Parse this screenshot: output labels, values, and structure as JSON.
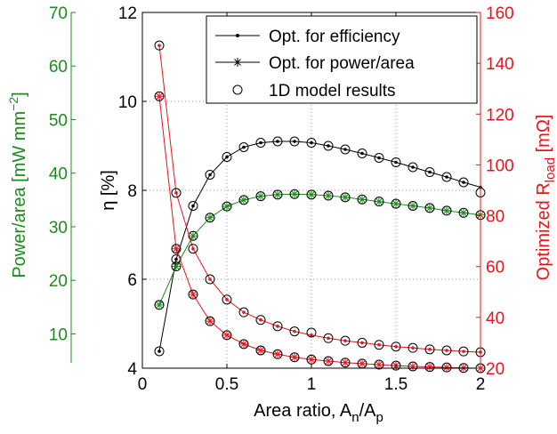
{
  "chart_data": {
    "type": "line",
    "xlabel": {
      "main": "Area ratio, A",
      "sub1": "n",
      "mid": "/A",
      "sub2": "p"
    },
    "xlim": [
      0,
      2
    ],
    "xticks": [
      0,
      0.5,
      1,
      1.5,
      2
    ],
    "xtick_labels": [
      "0",
      "0.5",
      "1",
      "1.5",
      "2"
    ],
    "grid": "dotted",
    "legend_position": "top-right",
    "axes": {
      "eta": {
        "label": "η [%]",
        "ylim": [
          4,
          12
        ],
        "ticks": [
          4,
          6,
          8,
          10,
          12
        ],
        "tick_labels": [
          "4",
          "6",
          "8",
          "10",
          "12"
        ],
        "color": "#000000"
      },
      "power": {
        "label_main": "Power/area [mW mm",
        "label_sup": "−2",
        "label_end": "]",
        "ylim": [
          3.6,
          70
        ],
        "ticks": [
          10,
          20,
          30,
          40,
          50,
          60,
          70
        ],
        "tick_labels": [
          "10",
          "20",
          "30",
          "40",
          "50",
          "60",
          "70"
        ],
        "color": "#1a8c1a"
      },
      "rload": {
        "label_main": "Optimized R",
        "label_sub": "load",
        "label_end": " [mΩ]",
        "ylim": [
          20,
          160
        ],
        "ticks": [
          20,
          40,
          60,
          80,
          100,
          120,
          140,
          160
        ],
        "tick_labels": [
          "20",
          "40",
          "60",
          "80",
          "100",
          "120",
          "140",
          "160"
        ],
        "color": "#e8141c"
      }
    },
    "legend": [
      {
        "label": "Opt. for efficiency",
        "style": "line-dot"
      },
      {
        "label": "Opt. for power/area",
        "style": "line-star"
      },
      {
        "label": "1D model results",
        "style": "circle"
      }
    ],
    "x": [
      0.1,
      0.2,
      0.3,
      0.4,
      0.5,
      0.6,
      0.7,
      0.8,
      0.9,
      1.0,
      1.1,
      1.2,
      1.3,
      1.4,
      1.5,
      1.6,
      1.7,
      1.8,
      1.9,
      2.0
    ],
    "series": [
      {
        "axis": "eta",
        "color": "#000000",
        "marker": "dot",
        "values": [
          4.38,
          6.45,
          7.65,
          8.35,
          8.75,
          8.97,
          9.07,
          9.1,
          9.1,
          9.07,
          9.0,
          8.92,
          8.83,
          8.73,
          8.63,
          8.52,
          8.41,
          8.3,
          8.18,
          8.07
        ],
        "model": [
          4.38,
          6.45,
          7.65,
          8.35,
          8.75,
          8.97,
          9.07,
          9.1,
          9.1,
          9.07,
          9.0,
          8.92,
          8.83,
          8.73,
          8.63,
          8.52,
          8.41,
          8.3,
          8.18,
          7.95
        ]
      },
      {
        "axis": "power",
        "color": "#1a8c1a",
        "marker": "star",
        "values": [
          15.4,
          22.6,
          28.3,
          31.7,
          33.8,
          35.0,
          35.7,
          36.0,
          36.1,
          36.0,
          35.8,
          35.5,
          35.1,
          34.7,
          34.3,
          33.9,
          33.5,
          33.0,
          32.6,
          32.2
        ],
        "model": [
          15.4,
          22.6,
          28.3,
          31.7,
          33.8,
          35.0,
          35.7,
          36.0,
          36.1,
          36.0,
          35.8,
          35.5,
          35.1,
          34.7,
          34.3,
          33.9,
          33.5,
          33.0,
          32.6,
          32.2
        ]
      },
      {
        "axis": "rload",
        "color": "#e8141c",
        "marker": "dot",
        "values": [
          147,
          89,
          67,
          55,
          47,
          42,
          39,
          36.5,
          34.5,
          33,
          31.8,
          30.8,
          30,
          29.2,
          28.5,
          28,
          27.4,
          27,
          26.6,
          26.3
        ],
        "model": [
          147,
          89,
          67,
          55,
          47,
          42,
          39,
          36.5,
          34.5,
          34,
          31.8,
          30.8,
          30,
          29.2,
          28.5,
          28,
          27.4,
          27,
          26.6,
          26.3
        ]
      },
      {
        "axis": "rload",
        "color": "#e8141c",
        "marker": "star",
        "values": [
          127,
          67,
          49,
          38.5,
          33,
          29.5,
          27,
          25.5,
          24.3,
          23.4,
          22.8,
          22.2,
          21.8,
          21.4,
          21,
          20.7,
          20.5,
          20.3,
          20.1,
          20
        ],
        "model": [
          127,
          67,
          49,
          38.5,
          33,
          29.5,
          27,
          25.5,
          24.3,
          23.4,
          22.8,
          22.2,
          21.8,
          21.4,
          21,
          20.7,
          20.5,
          20.3,
          20.1,
          20
        ]
      }
    ]
  }
}
